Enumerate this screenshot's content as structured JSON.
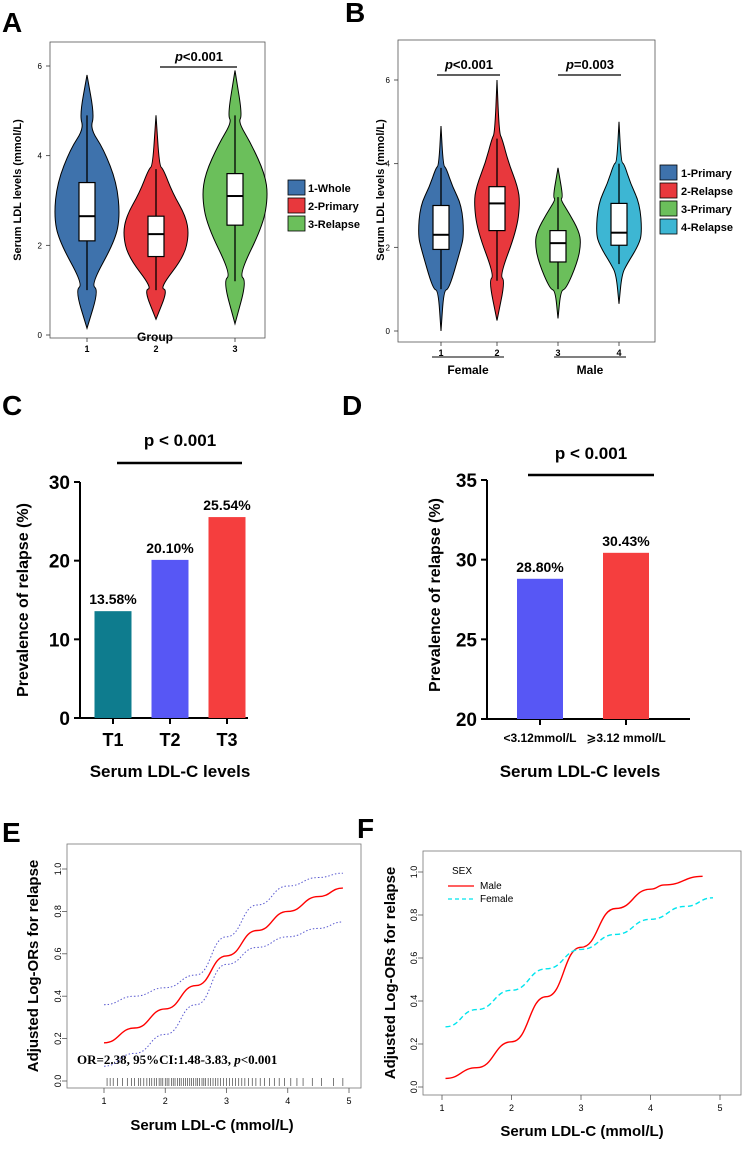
{
  "chart_data": [
    {
      "panel": "A",
      "type": "violin",
      "ylabel": "Serum LDL levels (mmol/L)",
      "xlabel": "Group",
      "ylim": [
        0,
        6
      ],
      "yticks": [
        "0",
        "2",
        "4",
        "6"
      ],
      "categories": [
        "1",
        "2",
        "3"
      ],
      "legend": [
        "1-Whole",
        "2-Primary",
        "3-Relapse"
      ],
      "colors": [
        "#3E72AC",
        "#E8383D",
        "#6BBF5B"
      ],
      "groups": [
        {
          "min": 0.15,
          "q1": 2.1,
          "median": 2.65,
          "q3": 3.4,
          "max": 5.8,
          "whisker_low": 1.0,
          "whisker_high": 4.9
        },
        {
          "min": 0.35,
          "q1": 1.75,
          "median": 2.25,
          "q3": 2.65,
          "max": 4.9,
          "whisker_low": 1.0,
          "whisker_high": 3.7
        },
        {
          "min": 0.25,
          "q1": 2.45,
          "median": 3.1,
          "q3": 3.6,
          "max": 5.9,
          "whisker_low": 1.2,
          "whisker_high": 4.9
        }
      ],
      "annotation": {
        "label": "p",
        "value": "<0.001",
        "from": "2",
        "to": "3"
      }
    },
    {
      "panel": "B",
      "type": "violin",
      "ylabel": "Serum LDL levels (mmol/L)",
      "ylim": [
        0,
        6
      ],
      "yticks": [
        "0",
        "2",
        "4",
        "6"
      ],
      "categories": [
        "1",
        "2",
        "3",
        "4"
      ],
      "group_labels": [
        "Female",
        "Male"
      ],
      "legend": [
        "1-Primary",
        "2-Relapse",
        "3-Primary",
        "4-Relapse"
      ],
      "colors": [
        "#3E72AC",
        "#E8383D",
        "#6BBF5B",
        "#3DB6D3"
      ],
      "groups": [
        {
          "min": 0.0,
          "q1": 1.95,
          "median": 2.3,
          "q3": 3.0,
          "max": 4.9,
          "whisker_low": 1.0,
          "whisker_high": 3.9
        },
        {
          "min": 0.25,
          "q1": 2.4,
          "median": 3.05,
          "q3": 3.45,
          "max": 6.0,
          "whisker_low": 1.2,
          "whisker_high": 4.6
        },
        {
          "min": 0.3,
          "q1": 1.65,
          "median": 2.1,
          "q3": 2.4,
          "max": 3.9,
          "whisker_low": 1.0,
          "whisker_high": 3.2
        },
        {
          "min": 0.65,
          "q1": 2.05,
          "median": 2.35,
          "q3": 3.05,
          "max": 5.0,
          "whisker_low": 1.6,
          "whisker_high": 4.0
        }
      ],
      "annotations": [
        {
          "label": "p",
          "value": "<0.001",
          "from": "1",
          "to": "2"
        },
        {
          "label": "p",
          "value": "=0.003",
          "from": "3",
          "to": "4"
        }
      ]
    },
    {
      "panel": "C",
      "type": "bar",
      "ylabel": "Prevalence of relapse (%)",
      "xlabel": "Serum LDL-C levels",
      "ylim": [
        0,
        30
      ],
      "yticks": [
        "0",
        "10",
        "20",
        "30"
      ],
      "categories": [
        "T1",
        "T2",
        "T3"
      ],
      "values": [
        13.58,
        20.1,
        25.54
      ],
      "value_labels": [
        "13.58%",
        "20.10%",
        "25.54%"
      ],
      "colors": [
        "#0E7C8E",
        "#5757F5",
        "#F53E3E"
      ],
      "annotation": "p < 0.001"
    },
    {
      "panel": "D",
      "type": "bar",
      "ylabel": "Prevalence of relapse (%)",
      "xlabel": "Serum LDL-C levels",
      "ylim": [
        20,
        35
      ],
      "yticks": [
        "20",
        "25",
        "30",
        "35"
      ],
      "categories": [
        "<3.12mmol/L",
        "⩾3.12 mmol/L"
      ],
      "values": [
        28.8,
        30.43
      ],
      "value_labels": [
        "28.80%",
        "30.43%"
      ],
      "colors": [
        "#5757F5",
        "#F53E3E"
      ],
      "annotation": "p < 0.001"
    },
    {
      "panel": "E",
      "type": "line",
      "ylabel": "Adjusted Log-ORs for relapse",
      "xlabel": "Serum LDL-C (mmol/L)",
      "xlim": [
        1,
        5
      ],
      "ylim": [
        0,
        1
      ],
      "xticks": [
        "1",
        "2",
        "3",
        "4",
        "5"
      ],
      "yticks": [
        "0.0",
        "0.2",
        "0.4",
        "0.6",
        "0.8",
        "1.0"
      ],
      "annotation": "OR=2.38, 95%CI:1.48-3.83, ",
      "annotation_p": "p",
      "annotation_p_value": "<0.001",
      "series": [
        {
          "name": "estimate",
          "color": "#FF0000",
          "x": [
            1,
            1.5,
            2,
            2.5,
            3,
            3.5,
            4,
            4.5,
            4.9
          ],
          "y": [
            0.18,
            0.25,
            0.34,
            0.45,
            0.59,
            0.71,
            0.8,
            0.87,
            0.91
          ]
        },
        {
          "name": "upper CI",
          "color": "#5A5AD0",
          "x": [
            1,
            1.5,
            2,
            2.5,
            3,
            3.5,
            4,
            4.5,
            4.9
          ],
          "y": [
            0.36,
            0.4,
            0.44,
            0.5,
            0.68,
            0.83,
            0.92,
            0.96,
            0.98
          ]
        },
        {
          "name": "lower CI",
          "color": "#5A5AD0",
          "x": [
            1,
            1.5,
            2,
            2.5,
            3,
            3.5,
            4,
            4.5,
            4.9
          ],
          "y": [
            0.07,
            0.13,
            0.22,
            0.36,
            0.55,
            0.63,
            0.68,
            0.72,
            0.75
          ]
        }
      ],
      "rug": [
        1.05,
        1.1,
        1.15,
        1.22,
        1.3,
        1.38,
        1.45,
        1.5,
        1.56,
        1.6,
        1.65,
        1.7,
        1.74,
        1.78,
        1.82,
        1.86,
        1.9,
        1.93,
        1.96,
        2.0,
        2.03,
        2.06,
        2.1,
        2.13,
        2.16,
        2.2,
        2.23,
        2.26,
        2.3,
        2.33,
        2.36,
        2.4,
        2.43,
        2.46,
        2.5,
        2.53,
        2.56,
        2.6,
        2.63,
        2.66,
        2.7,
        2.74,
        2.78,
        2.82,
        2.86,
        2.9,
        2.95,
        3.0,
        3.05,
        3.1,
        3.15,
        3.2,
        3.25,
        3.3,
        3.36,
        3.42,
        3.48,
        3.55,
        3.62,
        3.7,
        3.78,
        3.86,
        3.95,
        4.05,
        4.15,
        4.25,
        4.4,
        4.55,
        4.75,
        4.9
      ]
    },
    {
      "panel": "F",
      "type": "line",
      "ylabel": "Adjusted Log-ORs for relapse",
      "xlabel": "Serum LDL-C (mmol/L)",
      "xlim": [
        1,
        5
      ],
      "ylim": [
        0,
        1
      ],
      "xticks": [
        "1",
        "2",
        "3",
        "4",
        "5"
      ],
      "yticks": [
        "0.0",
        "0.2",
        "0.4",
        "0.6",
        "0.8",
        "1.0"
      ],
      "legend_title": "SEX",
      "series": [
        {
          "name": "Male",
          "color": "#FF0000",
          "dash": "solid",
          "x": [
            1.05,
            1.5,
            2,
            2.5,
            3,
            3.5,
            4,
            4.2,
            4.75
          ],
          "y": [
            0.04,
            0.09,
            0.21,
            0.42,
            0.65,
            0.83,
            0.92,
            0.94,
            0.98
          ]
        },
        {
          "name": "Female",
          "color": "#00E5EE",
          "dash": "dashed",
          "x": [
            1.05,
            1.5,
            2,
            2.5,
            3,
            3.5,
            4,
            4.5,
            4.9
          ],
          "y": [
            0.28,
            0.36,
            0.45,
            0.55,
            0.64,
            0.71,
            0.78,
            0.84,
            0.88
          ]
        }
      ]
    }
  ]
}
